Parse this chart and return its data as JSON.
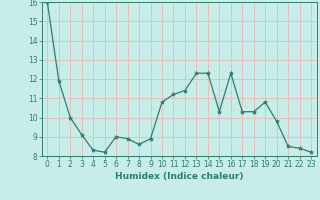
{
  "x": [
    0,
    1,
    2,
    3,
    4,
    5,
    6,
    7,
    8,
    9,
    10,
    11,
    12,
    13,
    14,
    15,
    16,
    17,
    18,
    19,
    20,
    21,
    22,
    23
  ],
  "y": [
    16.0,
    11.9,
    10.0,
    9.1,
    8.3,
    8.2,
    9.0,
    8.9,
    8.6,
    8.9,
    10.8,
    11.2,
    11.4,
    12.3,
    12.3,
    10.3,
    12.3,
    10.3,
    10.3,
    10.8,
    9.8,
    8.5,
    8.4,
    8.2
  ],
  "line_color": "#2e7d70",
  "marker": "*",
  "marker_size": 3,
  "bg_color": "#c8ece8",
  "grid_color": "#e8b8b8",
  "xlabel": "Humidex (Indice chaleur)",
  "ylim": [
    8,
    16
  ],
  "xlim_min": -0.5,
  "xlim_max": 23.5,
  "yticks": [
    8,
    9,
    10,
    11,
    12,
    13,
    14,
    15,
    16
  ],
  "xticks": [
    0,
    1,
    2,
    3,
    4,
    5,
    6,
    7,
    8,
    9,
    10,
    11,
    12,
    13,
    14,
    15,
    16,
    17,
    18,
    19,
    20,
    21,
    22,
    23
  ],
  "xtick_labels": [
    "0",
    "1",
    "2",
    "3",
    "4",
    "5",
    "6",
    "7",
    "8",
    "9",
    "10",
    "11",
    "12",
    "13",
    "14",
    "15",
    "16",
    "17",
    "18",
    "19",
    "20",
    "21",
    "22",
    "23"
  ],
  "tick_color": "#2e7d70",
  "label_fontsize": 6.5,
  "tick_fontsize": 5.5,
  "line_width": 0.9
}
